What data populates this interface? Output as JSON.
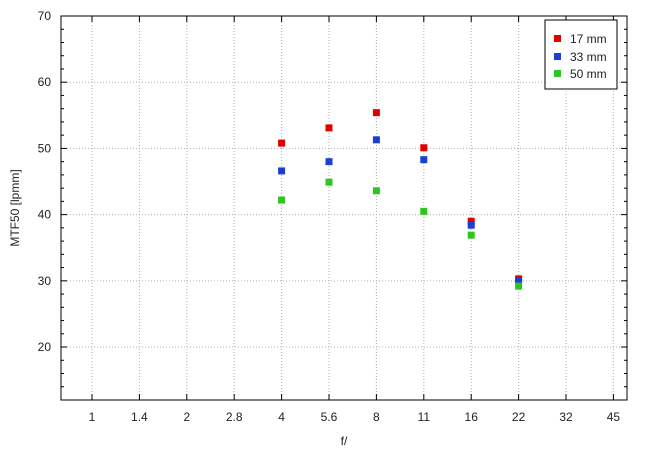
{
  "chart_data": {
    "type": "scatter",
    "title": "",
    "xlabel": "f/",
    "ylabel": "MTF50 [lpmm]",
    "x_categories": [
      "1",
      "1.4",
      "2",
      "2.8",
      "4",
      "5.6",
      "8",
      "11",
      "16",
      "22",
      "32",
      "45"
    ],
    "x": [
      "4",
      "5.6",
      "8",
      "11",
      "16",
      "22"
    ],
    "ylim": [
      12,
      70
    ],
    "yticks": [
      20,
      30,
      40,
      50,
      60,
      70
    ],
    "grid": true,
    "legend_position": "top-right",
    "series": [
      {
        "name": "17 mm",
        "color": "#e00000",
        "values": [
          50.8,
          53.1,
          55.4,
          50.1,
          39.0,
          30.3
        ]
      },
      {
        "name": "33 mm",
        "color": "#1a3fd6",
        "values": [
          46.6,
          48.0,
          51.3,
          48.3,
          38.4,
          30.0
        ]
      },
      {
        "name": "50 mm",
        "color": "#2ec51e",
        "values": [
          42.2,
          44.9,
          43.6,
          40.5,
          36.9,
          29.2
        ]
      }
    ]
  }
}
